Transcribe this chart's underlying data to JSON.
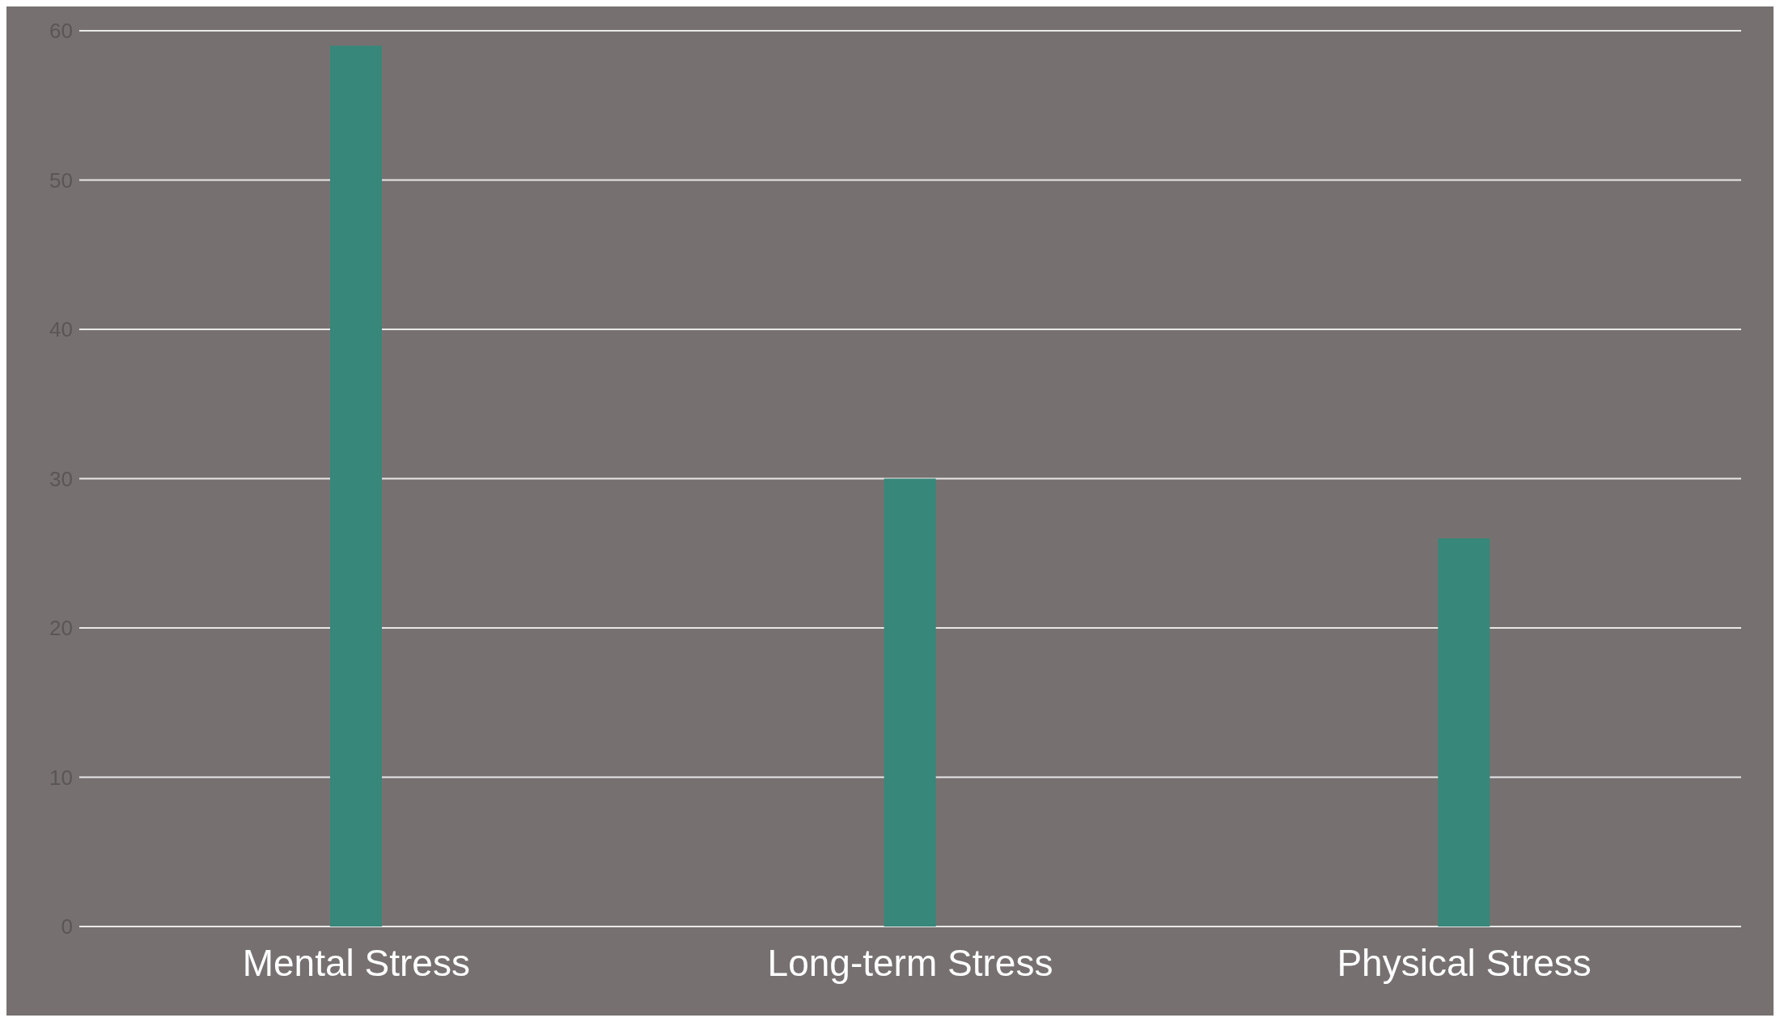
{
  "chart_data": {
    "type": "bar",
    "categories": [
      "Mental Stress",
      "Long-term Stress",
      "Physical Stress"
    ],
    "values": [
      59,
      30,
      26
    ],
    "color": "#37877a",
    "ylim": [
      0,
      60
    ],
    "yticks": [
      0,
      10,
      20,
      30,
      40,
      50,
      60
    ],
    "grid": "y"
  }
}
